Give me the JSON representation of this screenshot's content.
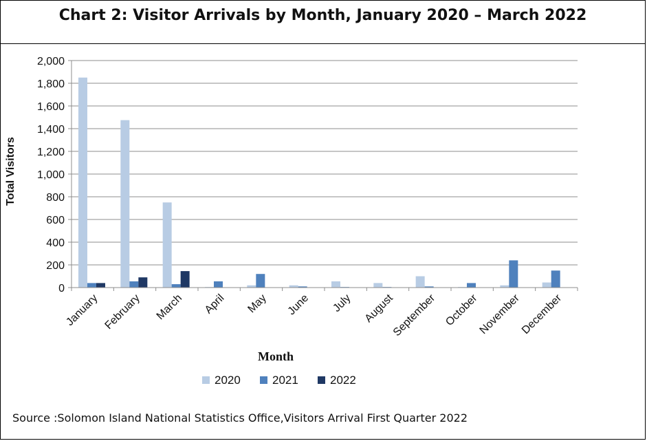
{
  "title": "Chart 2: Visitor Arrivals by Month, January 2020 – March 2022",
  "source": "Source :Solomon Island National Statistics Office,Visitors Arrival First Quarter 2022",
  "colors": {
    "2020": "#b8cce4",
    "2021": "#4f81bd",
    "2022": "#1f3864",
    "grid": "#8c8c8c"
  },
  "chart_data": {
    "type": "bar",
    "title": "Chart 2: Visitor Arrivals by Month, January 2020 – March 2022",
    "xlabel": "Month",
    "ylabel": "Total Visitors",
    "ylim": [
      0,
      2000
    ],
    "yticks": [
      "0",
      "200",
      "400",
      "600",
      "800",
      "1,000",
      "1,200",
      "1,400",
      "1,600",
      "1,800",
      "2,000"
    ],
    "categories": [
      "January",
      "February",
      "March",
      "April",
      "May",
      "June",
      "July",
      "August",
      "September",
      "October",
      "November",
      "December"
    ],
    "series": [
      {
        "name": "2020",
        "values": [
          1850,
          1475,
          750,
          5,
          20,
          20,
          55,
          40,
          100,
          5,
          20,
          45
        ]
      },
      {
        "name": "2021",
        "values": [
          40,
          55,
          30,
          55,
          120,
          10,
          5,
          5,
          10,
          40,
          240,
          150
        ]
      },
      {
        "name": "2022",
        "values": [
          40,
          90,
          145,
          null,
          null,
          null,
          null,
          null,
          null,
          null,
          null,
          null
        ]
      }
    ],
    "grid": true,
    "legend": "bottom"
  }
}
